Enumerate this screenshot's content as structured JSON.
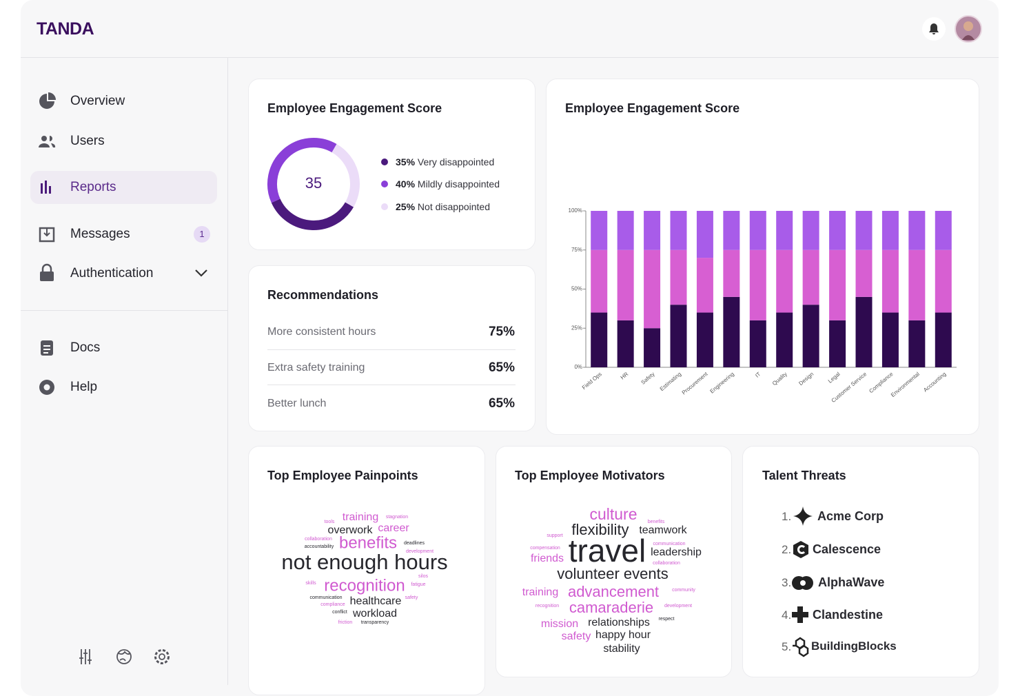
{
  "header": {
    "logo": "TANDA"
  },
  "sidebar": {
    "nav": [
      {
        "label": "Overview"
      },
      {
        "label": "Users"
      },
      {
        "label": "Reports"
      },
      {
        "label": "Messages",
        "badge": 1
      },
      {
        "label": "Authentication"
      }
    ],
    "secondary": [
      {
        "label": "Docs"
      },
      {
        "label": "Help"
      }
    ]
  },
  "engagement_summary": {
    "type": "donut",
    "title": "Employee Engagement Score",
    "score": 35,
    "segments": [
      {
        "name": "Very disappointed",
        "value": 35,
        "value_label": "35%",
        "color": "#4b1a7d"
      },
      {
        "name": "Mildly disappointed",
        "value": 40,
        "value_label": "40%",
        "color": "#8a3fd8"
      },
      {
        "name": "Not disappointed",
        "value": 25,
        "value_label": "25%",
        "color": "#ebdcf8"
      }
    ]
  },
  "recommendations": {
    "title": "Recommendations",
    "rows": [
      [
        "More consistent hours",
        "75%"
      ],
      [
        "Extra safety training",
        "65%"
      ],
      [
        "Better lunch",
        "65%"
      ]
    ]
  },
  "chart_data": {
    "type": "stacked_bar",
    "title": "Employee Engagement Score",
    "categories": [
      "Field Ops",
      "HR",
      "Safety",
      "Estimating",
      "Procurement",
      "Engineering",
      "IT",
      "Quality",
      "Design",
      "Legal",
      "Customer Service",
      "Compliance",
      "Environmental",
      "Accounting"
    ],
    "series": [
      {
        "color": "#2e0a4f",
        "values": [
          35,
          30,
          25,
          40,
          35,
          45,
          30,
          35,
          40,
          30,
          45,
          35,
          30,
          35
        ]
      },
      {
        "color": "#d75fd2",
        "values": [
          40,
          45,
          50,
          35,
          35,
          30,
          45,
          40,
          35,
          45,
          30,
          40,
          45,
          40
        ]
      },
      {
        "color": "#a85ce9",
        "values": [
          25,
          25,
          25,
          25,
          30,
          25,
          25,
          25,
          25,
          25,
          25,
          25,
          25,
          25
        ]
      }
    ],
    "ylim": [
      0,
      100
    ],
    "yticks": [
      {
        "value": 0,
        "label": "0%"
      },
      {
        "value": 25,
        "label": "25%"
      },
      {
        "value": 50,
        "label": "50%"
      },
      {
        "value": 75,
        "label": "75%"
      },
      {
        "value": 100,
        "label": "100%"
      }
    ]
  },
  "painpoints": {
    "title": "Top Employee Painpoints",
    "words": [
      "tools",
      "training",
      "stagnation",
      "overwork",
      "career",
      "collaboration",
      "accountability",
      "benefits",
      "deadlines",
      "development",
      "not enough hours",
      "silos",
      "skills",
      "recognition",
      "fatigue",
      "communication",
      "compliance",
      "healthcare",
      "safety",
      "conflict",
      "workload",
      "friction",
      "transparency"
    ]
  },
  "motivators": {
    "title": "Top Employee Motivators",
    "words": [
      "culture",
      "benefits",
      "support",
      "flexibility",
      "teamwork",
      "compensation",
      "travel",
      "communication",
      "leadership",
      "friends",
      "collaboration",
      "volunteer events",
      "training",
      "advancement",
      "community",
      "recognition",
      "camaraderie",
      "development",
      "mission",
      "relationships",
      "respect",
      "safety",
      "happy hour",
      "stability"
    ]
  },
  "talent_threats": {
    "title": "Talent Threats",
    "items": [
      {
        "rank": "1.",
        "name": "Acme Corp"
      },
      {
        "rank": "2.",
        "name": "Calescence"
      },
      {
        "rank": "3.",
        "name": "AlphaWave"
      },
      {
        "rank": "4.",
        "name": "Clandestine"
      },
      {
        "rank": "5.",
        "name": "BuildingBlocks"
      }
    ]
  }
}
